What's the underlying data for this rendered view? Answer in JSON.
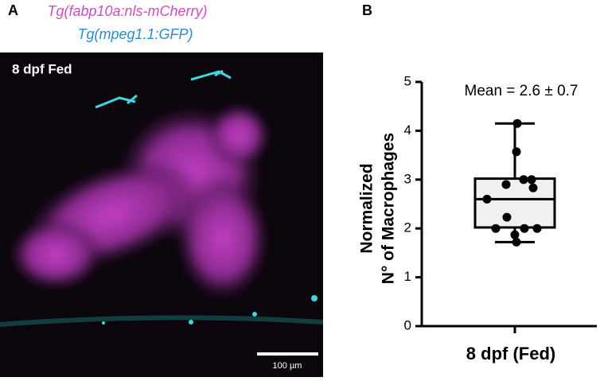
{
  "panel_labels": [
    "A",
    "B"
  ],
  "image": {
    "title_lines": [
      "Tg(fabp10a:nls-mCherry)",
      "Tg(mpeg1.1:GFP)"
    ],
    "label": "8 dpf Fed",
    "scale_bar": "100 µm"
  },
  "chart_data": {
    "type": "box",
    "ylabel": [
      "Normalized",
      "N° of Macrophages"
    ],
    "categories": [
      "8 dpf (Fed)"
    ],
    "annotation": "Mean = 2.6 ± 0.7",
    "box": {
      "min": 1.72,
      "q1": 2.02,
      "median": 2.6,
      "q3": 3.02,
      "max": 4.15
    },
    "points": [
      4.15,
      3.57,
      3.0,
      2.9,
      3.0,
      2.83,
      2.6,
      2.23,
      2.0,
      2.0,
      2.0,
      1.87,
      1.72
    ],
    "ylim": [
      0,
      5
    ],
    "yticks": [
      0,
      1,
      2,
      3,
      4,
      5
    ],
    "color": "#f0f0f0"
  }
}
